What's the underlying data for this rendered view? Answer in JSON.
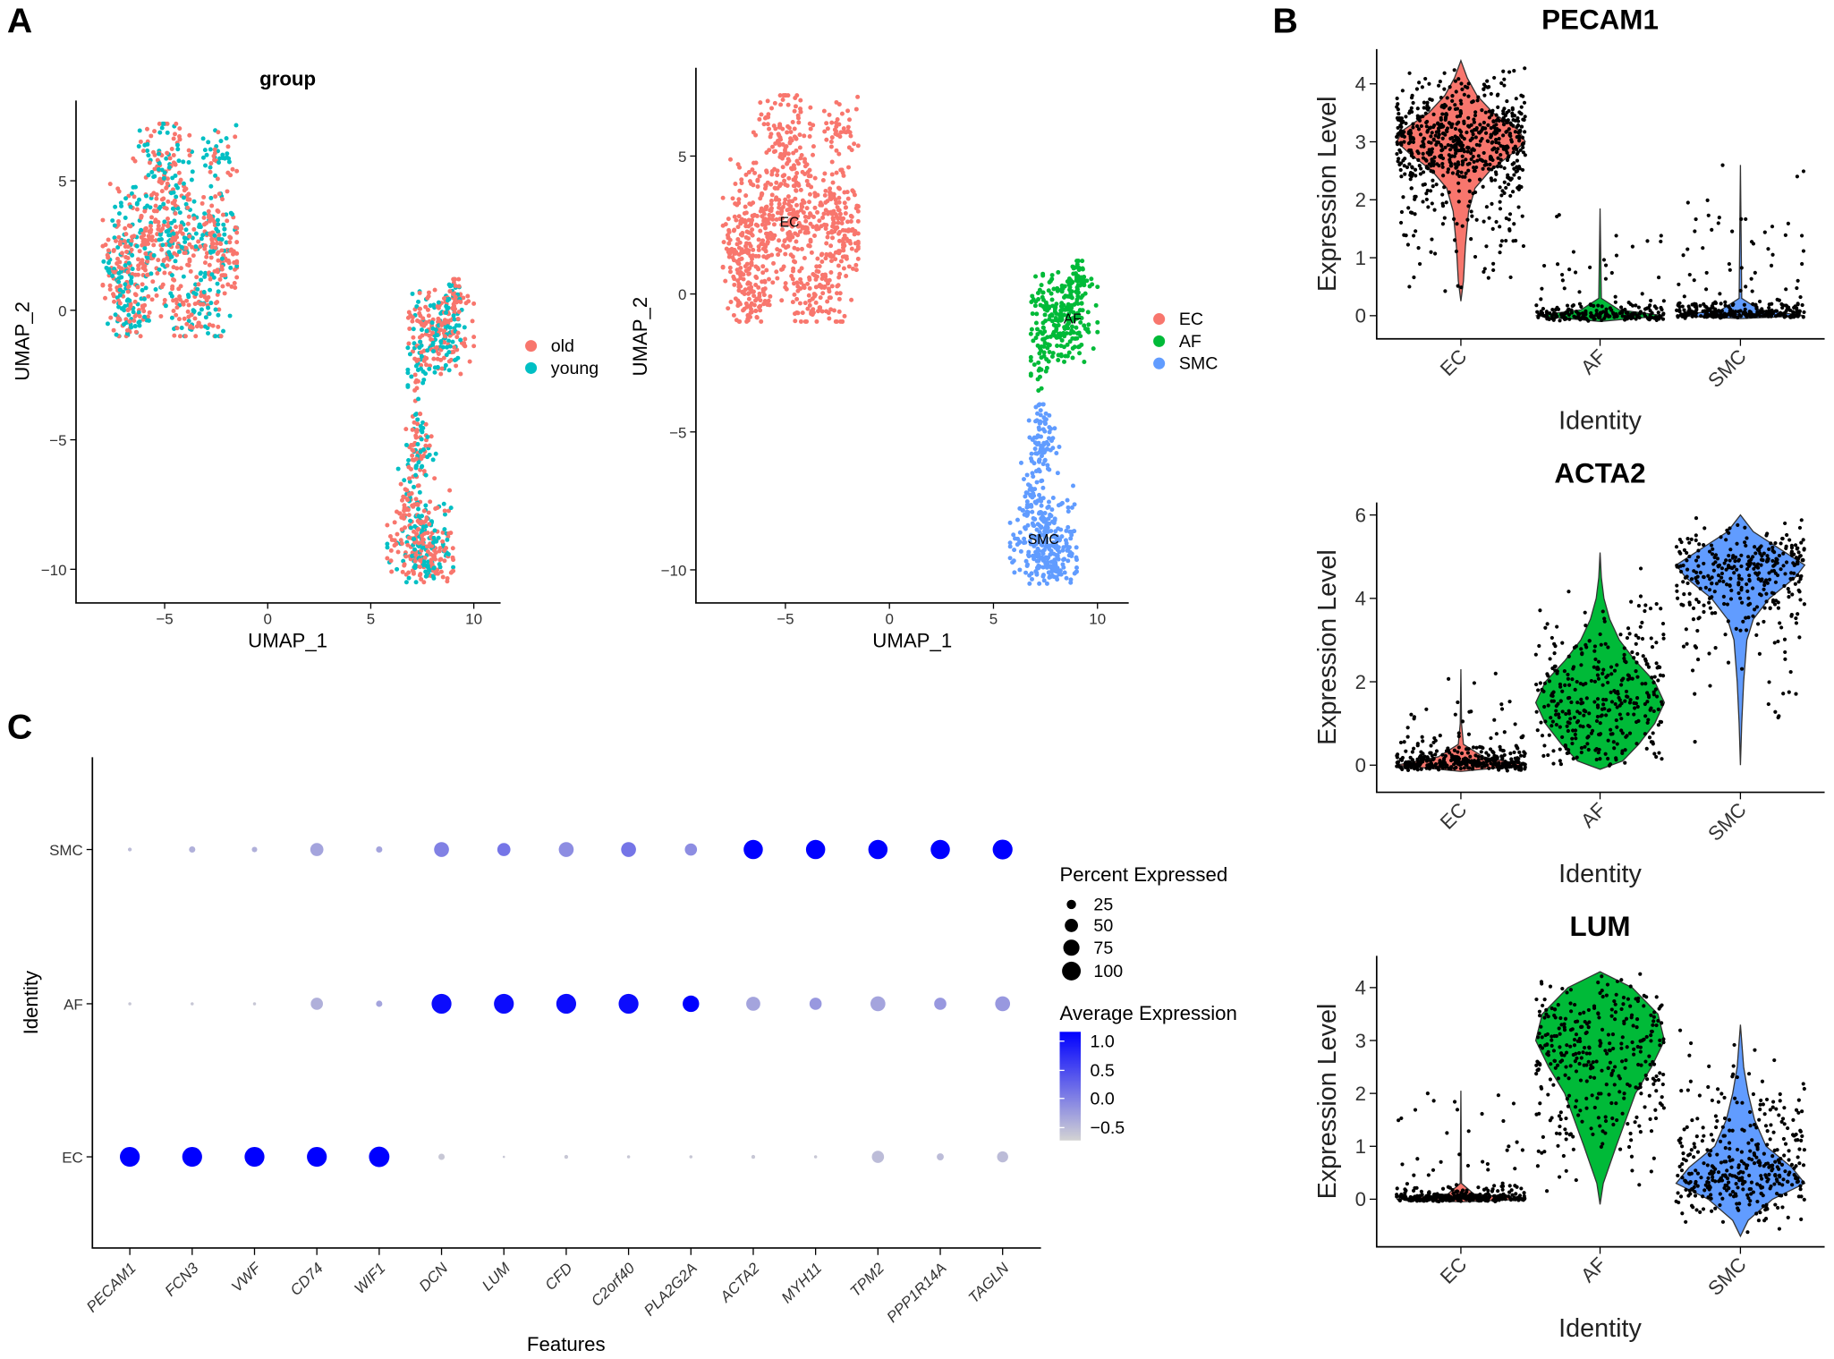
{
  "panels": {
    "a": "A",
    "b": "B",
    "c": "C"
  },
  "colors": {
    "old": "#F8766D",
    "young": "#00BFC4",
    "EC": "#F8766D",
    "AF": "#00BA38",
    "SMC": "#619CFF",
    "high": "#0000FF",
    "low": "#D3D3D3"
  },
  "chart_data": [
    {
      "type": "scatter",
      "title": "group",
      "xlabel": "UMAP_1",
      "ylabel": "UMAP_2",
      "xticks": [
        -5,
        0,
        5,
        10
      ],
      "yticks": [
        5,
        0,
        -5,
        -10
      ],
      "xlim": [
        -9.3,
        11.3
      ],
      "ylim": [
        -11.3,
        8.1
      ],
      "color_by": "group",
      "legend": {
        "position": "right",
        "entries": [
          "old",
          "young"
        ]
      },
      "clusters": [
        {
          "name": "EC",
          "x_range": [
            -8,
            -1.5
          ],
          "y_range": [
            -1,
            7.2
          ],
          "n": 900
        },
        {
          "name": "AF",
          "x_range": [
            6.8,
            10
          ],
          "y_range": [
            -3.5,
            1.2
          ],
          "n": 300
        },
        {
          "name": "SMC",
          "x_range": [
            5.8,
            9
          ],
          "y_range": [
            -10.5,
            -4
          ],
          "n": 400
        }
      ]
    },
    {
      "type": "scatter",
      "xlabel": "UMAP_1",
      "ylabel": "UMAP_2",
      "xticks": [
        -5,
        0,
        5,
        10
      ],
      "yticks": [
        5,
        0,
        -5,
        -10
      ],
      "xlim": [
        -9.3,
        11.5
      ],
      "ylim": [
        -11.2,
        8.2
      ],
      "color_by": "identity",
      "legend": {
        "position": "right",
        "entries": [
          "EC",
          "AF",
          "SMC"
        ]
      },
      "cluster_labels": [
        {
          "text": "EC",
          "x": -4.8,
          "y": 2.6
        },
        {
          "text": "AF",
          "x": 8.8,
          "y": -0.9
        },
        {
          "text": "SMC",
          "x": 7.4,
          "y": -8.9
        }
      ]
    },
    {
      "type": "violin",
      "title": "PECAM1",
      "xlabel": "Identity",
      "ylabel": "Expression Level",
      "categories": [
        "EC",
        "AF",
        "SMC"
      ],
      "yticks": [
        0,
        1,
        2,
        3,
        4
      ],
      "ylim": [
        -0.4,
        4.6
      ],
      "groups": [
        {
          "name": "EC",
          "n": 700,
          "density": [
            [
              0.25,
              0
            ],
            [
              0.6,
              0.04
            ],
            [
              1.2,
              0.07
            ],
            [
              1.8,
              0.12
            ],
            [
              2.2,
              0.22
            ],
            [
              2.5,
              0.45
            ],
            [
              2.8,
              0.8
            ],
            [
              3.0,
              1
            ],
            [
              3.2,
              0.9
            ],
            [
              3.5,
              0.5
            ],
            [
              3.8,
              0.25
            ],
            [
              4.1,
              0.1
            ],
            [
              4.4,
              0
            ]
          ]
        },
        {
          "name": "AF",
          "n": 220,
          "density": [
            [
              -0.1,
              0
            ],
            [
              0,
              1
            ],
            [
              0.1,
              0.3
            ],
            [
              0.3,
              0.02
            ],
            [
              1.85,
              0
            ]
          ]
        },
        {
          "name": "SMC",
          "n": 300,
          "density": [
            [
              -0.05,
              0
            ],
            [
              0,
              1
            ],
            [
              0.1,
              0.3
            ],
            [
              0.3,
              0.02
            ],
            [
              2.6,
              0
            ]
          ]
        }
      ]
    },
    {
      "type": "violin",
      "title": "ACTA2",
      "xlabel": "Identity",
      "ylabel": "Expression Level",
      "categories": [
        "EC",
        "AF",
        "SMC"
      ],
      "yticks": [
        0,
        2,
        4,
        6
      ],
      "ylim": [
        -0.65,
        6.3
      ],
      "groups": [
        {
          "name": "EC",
          "n": 350,
          "density": [
            [
              -0.15,
              0
            ],
            [
              0,
              1
            ],
            [
              0.2,
              0.35
            ],
            [
              0.5,
              0.04
            ],
            [
              1,
              0.01
            ],
            [
              2.3,
              0
            ]
          ]
        },
        {
          "name": "AF",
          "n": 350,
          "density": [
            [
              -0.1,
              0
            ],
            [
              0.1,
              0.35
            ],
            [
              0.5,
              0.6
            ],
            [
              1,
              0.85
            ],
            [
              1.5,
              1
            ],
            [
              2,
              0.85
            ],
            [
              2.5,
              0.55
            ],
            [
              3,
              0.3
            ],
            [
              3.5,
              0.15
            ],
            [
              4,
              0.06
            ],
            [
              4.5,
              0.02
            ],
            [
              5.1,
              0
            ]
          ]
        },
        {
          "name": "SMC",
          "n": 350,
          "density": [
            [
              0,
              0
            ],
            [
              1,
              0.02
            ],
            [
              2,
              0.05
            ],
            [
              3,
              0.1
            ],
            [
              3.5,
              0.2
            ],
            [
              4,
              0.45
            ],
            [
              4.5,
              0.85
            ],
            [
              4.8,
              1
            ],
            [
              5.2,
              0.6
            ],
            [
              5.6,
              0.2
            ],
            [
              6,
              0
            ]
          ]
        }
      ]
    },
    {
      "type": "violin",
      "title": "LUM",
      "xlabel": "Identity",
      "ylabel": "Expression Level",
      "categories": [
        "EC",
        "AF",
        "SMC"
      ],
      "yticks": [
        0,
        1,
        2,
        3,
        4
      ],
      "ylim": [
        -0.9,
        4.6
      ],
      "groups": [
        {
          "name": "EC",
          "n": 300,
          "density": [
            [
              -0.05,
              0
            ],
            [
              0,
              1
            ],
            [
              0.1,
              0.2
            ],
            [
              0.3,
              0.01
            ],
            [
              2.05,
              0
            ]
          ]
        },
        {
          "name": "AF",
          "n": 350,
          "density": [
            [
              -0.1,
              0
            ],
            [
              0.3,
              0.05
            ],
            [
              1,
              0.25
            ],
            [
              1.5,
              0.4
            ],
            [
              2,
              0.55
            ],
            [
              2.5,
              0.8
            ],
            [
              3,
              1
            ],
            [
              3.5,
              0.9
            ],
            [
              4,
              0.5
            ],
            [
              4.3,
              0
            ]
          ]
        },
        {
          "name": "SMC",
          "n": 380,
          "density": [
            [
              -0.7,
              0
            ],
            [
              -0.4,
              0.12
            ],
            [
              0,
              0.5
            ],
            [
              0.3,
              1
            ],
            [
              0.6,
              0.8
            ],
            [
              1,
              0.4
            ],
            [
              1.5,
              0.22
            ],
            [
              2,
              0.12
            ],
            [
              2.5,
              0.05
            ],
            [
              3.3,
              0
            ]
          ]
        }
      ]
    },
    {
      "type": "dotplot",
      "xlabel": "Features",
      "ylabel": "Identity",
      "features": [
        "PECAM1",
        "FCN3",
        "VWF",
        "CD74",
        "WIF1",
        "DCN",
        "LUM",
        "CFD",
        "C2orf40",
        "PLA2G2A",
        "ACTA2",
        "MYH11",
        "TPM2",
        "PPP1R14A",
        "TAGLN"
      ],
      "identities": [
        "SMC",
        "AF",
        "EC"
      ],
      "percent_expressed": {
        "SMC": [
          3,
          8,
          6,
          35,
          8,
          45,
          35,
          45,
          45,
          30,
          75,
          75,
          75,
          75,
          80
        ],
        "AF": [
          2,
          2,
          2,
          30,
          8,
          80,
          80,
          80,
          80,
          55,
          40,
          30,
          45,
          30,
          45
        ],
        "EC": [
          80,
          80,
          80,
          80,
          85,
          8,
          1,
          3,
          2,
          2,
          3,
          2,
          30,
          10,
          25
        ]
      },
      "average_expression": {
        "SMC": [
          -0.5,
          -0.4,
          -0.4,
          -0.3,
          -0.3,
          0.0,
          0.1,
          -0.1,
          0.1,
          -0.1,
          1.1,
          1.1,
          1.1,
          1.1,
          1.1
        ],
        "AF": [
          -0.6,
          -0.6,
          -0.6,
          -0.4,
          -0.3,
          1.0,
          1.0,
          1.0,
          1.0,
          1.1,
          -0.3,
          -0.2,
          -0.3,
          -0.2,
          -0.2
        ],
        "EC": [
          1.1,
          1.1,
          1.1,
          1.1,
          1.1,
          -0.6,
          -0.6,
          -0.6,
          -0.6,
          -0.6,
          -0.6,
          -0.6,
          -0.5,
          -0.5,
          -0.5
        ]
      },
      "size_legend": {
        "title": "Percent Expressed",
        "values": [
          25,
          50,
          75,
          100
        ]
      },
      "color_legend": {
        "title": "Average Expression",
        "ticks": [
          "1.0",
          "0.5",
          "0.0",
          "−0.5"
        ],
        "range": [
          -0.7,
          1.1
        ]
      }
    }
  ]
}
